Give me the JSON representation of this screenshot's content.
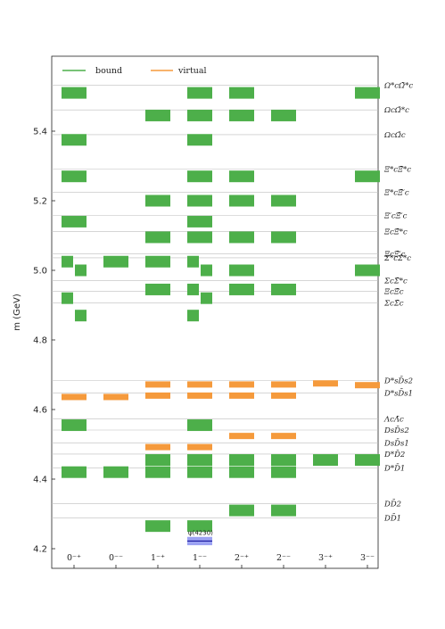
{
  "chart_data": {
    "type": "spectrum",
    "ylabel": "m (GeV)",
    "ylim": [
      4.16,
      5.58
    ],
    "yticks": [
      4.2,
      4.4,
      4.6,
      4.8,
      5.0,
      5.2,
      5.4
    ],
    "grid": false,
    "legend_position": "top-left",
    "legend": [
      {
        "label": "bound",
        "color": "#4daf4a"
      },
      {
        "label": "virtual",
        "color": "#f59a3c"
      }
    ],
    "categories": [
      "0⁻⁺",
      "0⁻⁻",
      "1⁻⁺",
      "1⁻⁻",
      "2⁻⁺",
      "2⁻⁻",
      "3⁻⁺",
      "3⁻⁻"
    ],
    "thresholds": [
      {
        "label": "Ω*cΩ̄*c",
        "mass": 5.532
      },
      {
        "label": "ΩcΩ̄*c",
        "mass": 5.461
      },
      {
        "label": "ΩcΩ̄c",
        "mass": 5.39
      },
      {
        "label": "Ξ*cΞ̄*c",
        "mass": 5.291
      },
      {
        "label": "Ξ*cΞ̄′c",
        "mass": 5.224
      },
      {
        "label": "Ξ′cΞ̄′c",
        "mass": 5.158
      },
      {
        "label": "ΞcΞ̄*c",
        "mass": 5.112
      },
      {
        "label": "ΞcΞ̄′c",
        "mass": 5.048
      },
      {
        "label": "Σ*cΣ̄*c",
        "mass": 5.036
      },
      {
        "label": "ΣcΣ̄*c",
        "mass": 4.971
      },
      {
        "label": "ΞcΞ̄c",
        "mass": 4.94
      },
      {
        "label": "ΣcΣ̄c",
        "mass": 4.906
      },
      {
        "label": "D*sD̄s2",
        "mass": 4.683
      },
      {
        "label": "D*sD̄s1",
        "mass": 4.648
      },
      {
        "label": "ΛcΛ̄c",
        "mass": 4.573
      },
      {
        "label": "DsD̄s2",
        "mass": 4.541
      },
      {
        "label": "DsD̄s1",
        "mass": 4.504
      },
      {
        "label": "D*D̄2",
        "mass": 4.472
      },
      {
        "label": "D*D̄1",
        "mass": 4.432
      },
      {
        "label": "DD̄2",
        "mass": 4.33
      },
      {
        "label": "DD̄1",
        "mass": 4.289
      }
    ],
    "states": [
      {
        "cat": 0,
        "m": 5.51,
        "kind": "bound"
      },
      {
        "cat": 0,
        "m": 5.375,
        "kind": "bound"
      },
      {
        "cat": 0,
        "m": 5.27,
        "kind": "bound"
      },
      {
        "cat": 0,
        "m": 5.14,
        "kind": "bound"
      },
      {
        "cat": 0,
        "m": 5.025,
        "kind": "bound",
        "sub": "left"
      },
      {
        "cat": 0,
        "m": 5.0,
        "kind": "bound",
        "sub": "right"
      },
      {
        "cat": 0,
        "m": 4.92,
        "kind": "bound",
        "sub": "left"
      },
      {
        "cat": 0,
        "m": 4.87,
        "kind": "bound",
        "sub": "right"
      },
      {
        "cat": 0,
        "m": 4.636,
        "kind": "virtual"
      },
      {
        "cat": 0,
        "m": 4.555,
        "kind": "bound"
      },
      {
        "cat": 0,
        "m": 4.42,
        "kind": "bound"
      },
      {
        "cat": 1,
        "m": 5.025,
        "kind": "bound"
      },
      {
        "cat": 1,
        "m": 4.636,
        "kind": "virtual"
      },
      {
        "cat": 1,
        "m": 4.42,
        "kind": "bound"
      },
      {
        "cat": 2,
        "m": 5.445,
        "kind": "bound"
      },
      {
        "cat": 2,
        "m": 5.2,
        "kind": "bound"
      },
      {
        "cat": 2,
        "m": 5.095,
        "kind": "bound"
      },
      {
        "cat": 2,
        "m": 5.025,
        "kind": "bound"
      },
      {
        "cat": 2,
        "m": 4.945,
        "kind": "bound"
      },
      {
        "cat": 2,
        "m": 4.672,
        "kind": "virtual"
      },
      {
        "cat": 2,
        "m": 4.64,
        "kind": "virtual"
      },
      {
        "cat": 2,
        "m": 4.492,
        "kind": "virtual"
      },
      {
        "cat": 2,
        "m": 4.455,
        "kind": "bound"
      },
      {
        "cat": 2,
        "m": 4.42,
        "kind": "bound"
      },
      {
        "cat": 2,
        "m": 4.265,
        "kind": "bound"
      },
      {
        "cat": 3,
        "m": 5.51,
        "kind": "bound"
      },
      {
        "cat": 3,
        "m": 5.445,
        "kind": "bound"
      },
      {
        "cat": 3,
        "m": 5.375,
        "kind": "bound"
      },
      {
        "cat": 3,
        "m": 5.27,
        "kind": "bound"
      },
      {
        "cat": 3,
        "m": 5.2,
        "kind": "bound"
      },
      {
        "cat": 3,
        "m": 5.14,
        "kind": "bound"
      },
      {
        "cat": 3,
        "m": 5.095,
        "kind": "bound"
      },
      {
        "cat": 3,
        "m": 5.025,
        "kind": "bound",
        "sub": "left"
      },
      {
        "cat": 3,
        "m": 5.0,
        "kind": "bound",
        "sub": "right"
      },
      {
        "cat": 3,
        "m": 4.945,
        "kind": "bound",
        "sub": "left"
      },
      {
        "cat": 3,
        "m": 4.92,
        "kind": "bound",
        "sub": "right"
      },
      {
        "cat": 3,
        "m": 4.87,
        "kind": "bound",
        "sub": "left"
      },
      {
        "cat": 3,
        "m": 4.672,
        "kind": "virtual"
      },
      {
        "cat": 3,
        "m": 4.64,
        "kind": "virtual"
      },
      {
        "cat": 3,
        "m": 4.555,
        "kind": "bound"
      },
      {
        "cat": 3,
        "m": 4.492,
        "kind": "virtual"
      },
      {
        "cat": 3,
        "m": 4.455,
        "kind": "bound"
      },
      {
        "cat": 3,
        "m": 4.42,
        "kind": "bound"
      },
      {
        "cat": 3,
        "m": 4.265,
        "kind": "bound"
      },
      {
        "cat": 4,
        "m": 5.51,
        "kind": "bound"
      },
      {
        "cat": 4,
        "m": 5.445,
        "kind": "bound"
      },
      {
        "cat": 4,
        "m": 5.27,
        "kind": "bound"
      },
      {
        "cat": 4,
        "m": 5.2,
        "kind": "bound"
      },
      {
        "cat": 4,
        "m": 5.095,
        "kind": "bound"
      },
      {
        "cat": 4,
        "m": 5.0,
        "kind": "bound"
      },
      {
        "cat": 4,
        "m": 4.945,
        "kind": "bound"
      },
      {
        "cat": 4,
        "m": 4.672,
        "kind": "virtual"
      },
      {
        "cat": 4,
        "m": 4.64,
        "kind": "virtual"
      },
      {
        "cat": 4,
        "m": 4.524,
        "kind": "virtual"
      },
      {
        "cat": 4,
        "m": 4.455,
        "kind": "bound"
      },
      {
        "cat": 4,
        "m": 4.42,
        "kind": "bound"
      },
      {
        "cat": 4,
        "m": 4.31,
        "kind": "bound"
      },
      {
        "cat": 5,
        "m": 5.445,
        "kind": "bound"
      },
      {
        "cat": 5,
        "m": 5.2,
        "kind": "bound"
      },
      {
        "cat": 5,
        "m": 5.095,
        "kind": "bound"
      },
      {
        "cat": 5,
        "m": 4.945,
        "kind": "bound"
      },
      {
        "cat": 5,
        "m": 4.672,
        "kind": "virtual"
      },
      {
        "cat": 5,
        "m": 4.64,
        "kind": "virtual"
      },
      {
        "cat": 5,
        "m": 4.524,
        "kind": "virtual"
      },
      {
        "cat": 5,
        "m": 4.455,
        "kind": "bound"
      },
      {
        "cat": 5,
        "m": 4.42,
        "kind": "bound"
      },
      {
        "cat": 5,
        "m": 4.31,
        "kind": "bound"
      },
      {
        "cat": 6,
        "m": 4.675,
        "kind": "virtual"
      },
      {
        "cat": 6,
        "m": 4.455,
        "kind": "bound"
      },
      {
        "cat": 7,
        "m": 5.51,
        "kind": "bound"
      },
      {
        "cat": 7,
        "m": 5.27,
        "kind": "bound"
      },
      {
        "cat": 7,
        "m": 5.0,
        "kind": "bound"
      },
      {
        "cat": 7,
        "m": 4.67,
        "kind": "virtual"
      },
      {
        "cat": 7,
        "m": 4.455,
        "kind": "bound"
      }
    ],
    "experimental": {
      "label": "ψ(4230)",
      "cat": 3,
      "m": 4.222,
      "m_low": 4.21,
      "m_high": 4.234,
      "color": "#4a55e8"
    }
  }
}
